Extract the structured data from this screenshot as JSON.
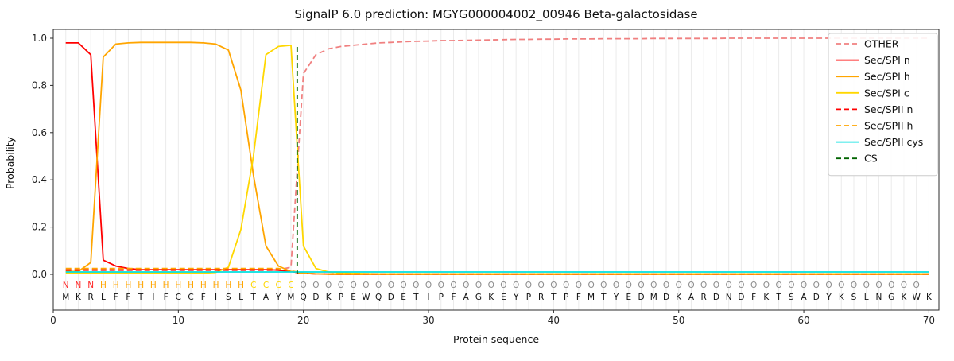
{
  "chart_data": {
    "type": "line",
    "title": "SignalP 6.0 prediction: MGYG000004002_00946 Beta-galactosidase",
    "xlabel": "Protein sequence",
    "ylabel": "Probability",
    "xlim": [
      0,
      70.8
    ],
    "ylim": [
      -0.15,
      1.04
    ],
    "xticks": [
      0,
      10,
      20,
      30,
      40,
      50,
      60,
      70
    ],
    "yticks": [
      0.0,
      0.2,
      0.4,
      0.6,
      0.8,
      1.0
    ],
    "grid": "vertical gridline at every residue position",
    "grid_color": "#ebebeb",
    "legend_position": "upper right",
    "x_start": 1,
    "sequence": "MKRLFFTIFCCFISLTAYMQDKPEWQDETIPFAGKEYPRTPFMTYEDMDKARDNDFKTSADYKSLNGKWK",
    "region_annotation": "NNNHHHHHHHHHHHHCCCCOOOOOOOOOOOOOOOOOOOOOOOOOOOOOOOOOOOOOOOOOOOOOOOOOO",
    "region_colors": {
      "N": "#ff2a2a",
      "H": "#ffa500",
      "C": "#ffd700",
      "O": "#8c8c8c"
    },
    "series": [
      {
        "name": "OTHER",
        "color": "#f08080",
        "dash": "dashed",
        "values": [
          0.02,
          0.02,
          0.02,
          0.02,
          0.02,
          0.02,
          0.02,
          0.02,
          0.02,
          0.02,
          0.02,
          0.02,
          0.02,
          0.02,
          0.02,
          0.02,
          0.02,
          0.02,
          0.03,
          0.85,
          0.93,
          0.955,
          0.965,
          0.97,
          0.975,
          0.98,
          0.982,
          0.985,
          0.987,
          0.988,
          0.99,
          0.99,
          0.991,
          0.992,
          0.993,
          0.994,
          0.995,
          0.995,
          0.996,
          0.996,
          0.997,
          0.997,
          0.997,
          0.998,
          0.998,
          0.998,
          0.998,
          0.999,
          0.999,
          0.999,
          0.999,
          0.999,
          0.999,
          1.0,
          1.0,
          1.0,
          1.0,
          1.0,
          1.0,
          1.0,
          1.0,
          1.0,
          1.0,
          1.0,
          1.0,
          1.0,
          1.0,
          1.0,
          1.0,
          1.0
        ]
      },
      {
        "name": "Sec/SPI n",
        "color": "#ff0000",
        "dash": "solid",
        "values": [
          0.98,
          0.98,
          0.93,
          0.06,
          0.035,
          0.025,
          0.02,
          0.02,
          0.02,
          0.02,
          0.02,
          0.02,
          0.02,
          0.02,
          0.02,
          0.02,
          0.02,
          0.018,
          0.012,
          0.004,
          0.002,
          0.001,
          0.0,
          0.0,
          0.0,
          0.0,
          0.0,
          0.0,
          0.0,
          0.0,
          0.0,
          0.0,
          0.0,
          0.0,
          0.0,
          0.0,
          0.0,
          0.0,
          0.0,
          0.0,
          0.0,
          0.0,
          0.0,
          0.0,
          0.0,
          0.0,
          0.0,
          0.0,
          0.0,
          0.0,
          0.0,
          0.0,
          0.0,
          0.0,
          0.0,
          0.0,
          0.0,
          0.0,
          0.0,
          0.0,
          0.0,
          0.0,
          0.0,
          0.0,
          0.0,
          0.0,
          0.0,
          0.0,
          0.0,
          0.0
        ]
      },
      {
        "name": "Sec/SPI h",
        "color": "#ffa500",
        "dash": "solid",
        "values": [
          0.012,
          0.012,
          0.05,
          0.92,
          0.975,
          0.98,
          0.982,
          0.982,
          0.982,
          0.982,
          0.982,
          0.98,
          0.975,
          0.95,
          0.78,
          0.42,
          0.12,
          0.035,
          0.012,
          0.004,
          0.002,
          0.0,
          0.0,
          0.0,
          0.0,
          0.0,
          0.0,
          0.0,
          0.0,
          0.0,
          0.0,
          0.0,
          0.0,
          0.0,
          0.0,
          0.0,
          0.0,
          0.0,
          0.0,
          0.0,
          0.0,
          0.0,
          0.0,
          0.0,
          0.0,
          0.0,
          0.0,
          0.0,
          0.0,
          0.0,
          0.0,
          0.0,
          0.0,
          0.0,
          0.0,
          0.0,
          0.0,
          0.0,
          0.0,
          0.0,
          0.0,
          0.0,
          0.0,
          0.0,
          0.0,
          0.0,
          0.0,
          0.0,
          0.0,
          0.0
        ]
      },
      {
        "name": "Sec/SPI c",
        "color": "#ffd700",
        "dash": "solid",
        "values": [
          0.005,
          0.005,
          0.005,
          0.005,
          0.005,
          0.005,
          0.005,
          0.005,
          0.005,
          0.005,
          0.005,
          0.005,
          0.008,
          0.03,
          0.19,
          0.5,
          0.93,
          0.965,
          0.97,
          0.12,
          0.025,
          0.01,
          0.006,
          0.004,
          0.003,
          0.002,
          0.002,
          0.002,
          0.002,
          0.002,
          0.002,
          0.002,
          0.002,
          0.002,
          0.002,
          0.002,
          0.002,
          0.002,
          0.002,
          0.002,
          0.002,
          0.002,
          0.002,
          0.002,
          0.002,
          0.002,
          0.002,
          0.002,
          0.002,
          0.002,
          0.002,
          0.002,
          0.002,
          0.002,
          0.002,
          0.002,
          0.002,
          0.002,
          0.002,
          0.002,
          0.002,
          0.002,
          0.002,
          0.002,
          0.002,
          0.002,
          0.002,
          0.002,
          0.002,
          0.002
        ]
      },
      {
        "name": "Sec/SPII n",
        "color": "#ff0000",
        "dash": "dashed",
        "values": [
          0.018,
          0.018,
          0.018,
          0.018,
          0.018,
          0.018,
          0.018,
          0.018,
          0.018,
          0.018,
          0.018,
          0.018,
          0.018,
          0.018,
          0.018,
          0.018,
          0.018,
          0.018,
          0.012,
          0.004,
          0.002,
          0.002,
          0.002,
          0.002,
          0.002,
          0.002,
          0.002,
          0.002,
          0.002,
          0.002,
          0.002,
          0.002,
          0.002,
          0.002,
          0.002,
          0.002,
          0.002,
          0.002,
          0.002,
          0.002,
          0.002,
          0.002,
          0.002,
          0.002,
          0.002,
          0.002,
          0.002,
          0.002,
          0.002,
          0.002,
          0.002,
          0.002,
          0.002,
          0.002,
          0.002,
          0.002,
          0.002,
          0.002,
          0.002,
          0.002,
          0.002,
          0.002,
          0.002,
          0.002,
          0.002,
          0.002,
          0.002,
          0.002,
          0.002,
          0.002
        ]
      },
      {
        "name": "Sec/SPII h",
        "color": "#ffa500",
        "dash": "dashed",
        "values": [
          0.025,
          0.025,
          0.025,
          0.025,
          0.025,
          0.025,
          0.025,
          0.025,
          0.025,
          0.025,
          0.025,
          0.025,
          0.025,
          0.025,
          0.025,
          0.025,
          0.025,
          0.025,
          0.015,
          0.005,
          0.002,
          0.002,
          0.002,
          0.002,
          0.002,
          0.002,
          0.002,
          0.002,
          0.002,
          0.002,
          0.002,
          0.002,
          0.002,
          0.002,
          0.002,
          0.002,
          0.002,
          0.002,
          0.002,
          0.002,
          0.002,
          0.002,
          0.002,
          0.002,
          0.002,
          0.002,
          0.002,
          0.002,
          0.002,
          0.002,
          0.002,
          0.002,
          0.002,
          0.002,
          0.002,
          0.002,
          0.002,
          0.002,
          0.002,
          0.002,
          0.002,
          0.002,
          0.002,
          0.002,
          0.002,
          0.002,
          0.002,
          0.002,
          0.002,
          0.002
        ]
      },
      {
        "name": "Sec/SPII cys",
        "color": "#00e0e0",
        "dash": "solid",
        "values": [
          0.01,
          0.01,
          0.01,
          0.01,
          0.01,
          0.01,
          0.01,
          0.01,
          0.01,
          0.01,
          0.01,
          0.01,
          0.01,
          0.01,
          0.01,
          0.01,
          0.01,
          0.01,
          0.01,
          0.01,
          0.01,
          0.01,
          0.01,
          0.01,
          0.01,
          0.01,
          0.01,
          0.01,
          0.01,
          0.01,
          0.01,
          0.01,
          0.01,
          0.01,
          0.01,
          0.01,
          0.01,
          0.01,
          0.01,
          0.01,
          0.01,
          0.01,
          0.01,
          0.01,
          0.01,
          0.01,
          0.01,
          0.01,
          0.01,
          0.01,
          0.01,
          0.01,
          0.01,
          0.01,
          0.01,
          0.01,
          0.01,
          0.01,
          0.01,
          0.01,
          0.01,
          0.01,
          0.01,
          0.01,
          0.01,
          0.01,
          0.01,
          0.01,
          0.01,
          0.01
        ]
      },
      {
        "name": "CS",
        "type": "vline",
        "x": 19.5,
        "ymin": 0.0,
        "ymax": 0.97,
        "color": "#006400",
        "dash": "dashed"
      }
    ]
  }
}
